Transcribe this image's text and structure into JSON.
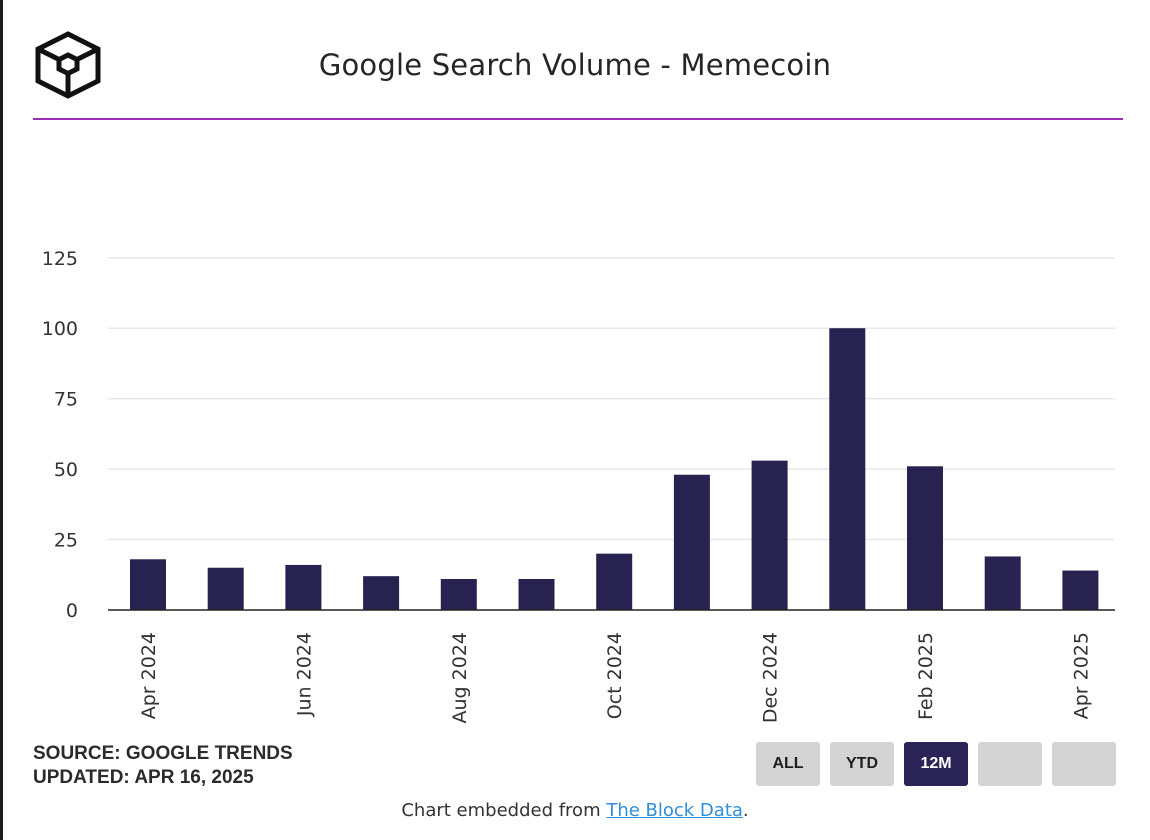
{
  "header": {
    "title": "Google Search Volume - Memecoin"
  },
  "colors": {
    "bar": "#27224f",
    "accent_rule": "#9b30b7",
    "grid": "#e8e8e8",
    "active_button": "#2a2456"
  },
  "chart_data": {
    "type": "bar",
    "title": "Google Search Volume - Memecoin",
    "xlabel": "",
    "ylabel": "",
    "ylim": [
      0,
      125
    ],
    "y_ticks": [
      "0",
      "25",
      "50",
      "75",
      "100",
      "125"
    ],
    "grid": true,
    "categories": [
      "Apr 2024",
      "May 2024",
      "Jun 2024",
      "Jul 2024",
      "Aug 2024",
      "Sep 2024",
      "Oct 2024",
      "Nov 2024",
      "Dec 2024",
      "Jan 2025",
      "Feb 2025",
      "Mar 2025",
      "Apr 2025"
    ],
    "values": [
      18,
      15,
      16,
      12,
      11,
      11,
      20,
      48,
      53,
      100,
      51,
      19,
      14
    ],
    "x_tick_labels": [
      "Apr 2024",
      "Jun 2024",
      "Aug 2024",
      "Oct 2024",
      "Dec 2024",
      "Feb 2025",
      "Apr 2025"
    ]
  },
  "footer": {
    "source": "SOURCE: GOOGLE TRENDS",
    "updated": "UPDATED: APR 16, 2025",
    "embed_prefix": "Chart embedded from ",
    "embed_link": "The Block Data",
    "embed_suffix": "."
  },
  "range_buttons": [
    {
      "label": "ALL",
      "active": false
    },
    {
      "label": "YTD",
      "active": false
    },
    {
      "label": "12M",
      "active": true
    },
    {
      "label": "",
      "active": false
    },
    {
      "label": "",
      "active": false
    }
  ]
}
